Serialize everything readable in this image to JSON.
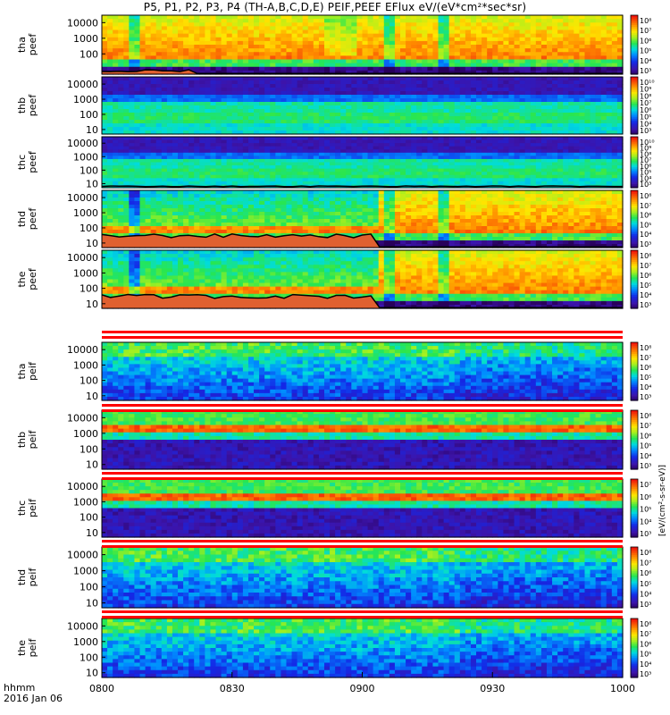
{
  "title": "P5, P1, P2, P3, P4 (TH-A,B,C,D,E) PEIF,PEEF EFlux eV/(eV*cm²*sec*sr)",
  "time_label": "hhmm",
  "date_label": "2016 Jan 06",
  "colorbar_unit_label": "[eV/(cm²-s-sr-eV)]",
  "colors": {
    "frame": "#000000",
    "background": "#ffffff",
    "separator_red": "#ff0000",
    "trace_black": "#000000",
    "trace_fill": "#e06030"
  },
  "chart_data": {
    "type": "heatmap",
    "x_ticks": [
      "0800",
      "0830",
      "0900",
      "0930",
      "1000"
    ],
    "xlim": [
      "08:00",
      "10:00"
    ],
    "y_scale": "log",
    "panels": [
      {
        "label": [
          "tha",
          "peef"
        ],
        "y_ticks": [
          "10000",
          "1000",
          "100"
        ],
        "ylim": [
          5,
          30000
        ],
        "species": "electron",
        "trace": "low",
        "cbar_ticks": [
          "10⁸",
          "10⁷",
          "10⁶",
          "10⁵",
          "10⁴",
          "10³"
        ]
      },
      {
        "label": [
          "thb",
          "peef"
        ],
        "y_ticks": [
          "10000",
          "1000",
          "100",
          "10"
        ],
        "ylim": [
          5,
          30000
        ],
        "species": "electron-quiet",
        "trace": "none",
        "cbar_ticks": [
          "10¹⁰",
          "10⁹",
          "10⁸",
          "10⁷",
          "10⁶",
          "10⁵",
          "10⁴",
          "10³"
        ]
      },
      {
        "label": [
          "thc",
          "peef"
        ],
        "y_ticks": [
          "10000",
          "1000",
          "100",
          "10"
        ],
        "ylim": [
          5,
          30000
        ],
        "species": "electron-quiet",
        "trace": "flat",
        "cbar_ticks": [
          "10¹⁰",
          "10⁹",
          "10⁸",
          "10⁷",
          "10⁶",
          "10⁵",
          "10⁴",
          "10³"
        ]
      },
      {
        "label": [
          "thd",
          "peef"
        ],
        "y_ticks": [
          "10000",
          "1000",
          "100",
          "10"
        ],
        "ylim": [
          5,
          30000
        ],
        "species": "electron",
        "trace": "high",
        "cbar_ticks": [
          "10⁸",
          "10⁷",
          "10⁶",
          "10⁵",
          "10⁴",
          "10³"
        ]
      },
      {
        "label": [
          "the",
          "peef"
        ],
        "y_ticks": [
          "10000",
          "1000",
          "100",
          "10"
        ],
        "ylim": [
          5,
          30000
        ],
        "species": "electron",
        "trace": "high",
        "cbar_ticks": [
          "10⁸",
          "10⁷",
          "10⁶",
          "10⁵",
          "10⁴",
          "10³"
        ]
      },
      {
        "label": [
          "tha",
          "peif"
        ],
        "y_ticks": [
          "10000",
          "1000",
          "100",
          "10"
        ],
        "ylim": [
          5,
          30000
        ],
        "species": "ion",
        "trace": "none",
        "cbar_ticks": [
          "10⁸",
          "10⁷",
          "10⁶",
          "10⁵",
          "10⁴",
          "10³"
        ]
      },
      {
        "label": [
          "thb",
          "peif"
        ],
        "y_ticks": [
          "10000",
          "1000",
          "100",
          "10"
        ],
        "ylim": [
          5,
          30000
        ],
        "species": "ion-band",
        "trace": "none",
        "cbar_ticks": [
          "10⁸",
          "10⁷",
          "10⁶",
          "10⁵",
          "10⁴",
          "10³"
        ]
      },
      {
        "label": [
          "thc",
          "peif"
        ],
        "y_ticks": [
          "10000",
          "1000",
          "100",
          "10"
        ],
        "ylim": [
          5,
          30000
        ],
        "species": "ion-band",
        "trace": "none",
        "cbar_ticks": [
          "10⁷",
          "10⁶",
          "10⁵",
          "10⁴",
          "10³"
        ]
      },
      {
        "label": [
          "thd",
          "peif"
        ],
        "y_ticks": [
          "10000",
          "1000",
          "100",
          "10"
        ],
        "ylim": [
          5,
          30000
        ],
        "species": "ion",
        "trace": "none",
        "cbar_ticks": [
          "10⁸",
          "10⁷",
          "10⁶",
          "10⁵",
          "10⁴",
          "10³"
        ]
      },
      {
        "label": [
          "the",
          "peif"
        ],
        "y_ticks": [
          "10000",
          "1000",
          "100",
          "10"
        ],
        "ylim": [
          5,
          30000
        ],
        "species": "ion",
        "trace": "none",
        "cbar_ticks": [
          "10⁸",
          "10⁷",
          "10⁶",
          "10⁵",
          "10⁴",
          "10³"
        ]
      }
    ],
    "colormap": "rainbow (purple-blue-cyan-green-yellow-orange-red)"
  }
}
